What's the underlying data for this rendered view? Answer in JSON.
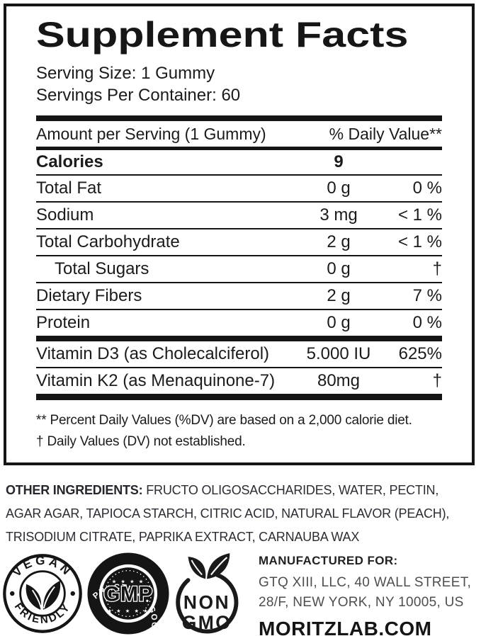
{
  "facts": {
    "title": "Supplement Facts",
    "serving_size": "Serving Size: 1 Gummy",
    "servings_per_container": "Servings Per Container: 60",
    "header": {
      "amount_label": "Amount per Serving (1 Gummy)",
      "dv_label": "% Daily Value**"
    },
    "rows": [
      {
        "name": "Calories",
        "amount": "9",
        "dv": "",
        "mods": [
          "bold",
          "cal"
        ]
      },
      {
        "name": "Total Fat",
        "amount": "0 g",
        "dv": "0 %",
        "mods": []
      },
      {
        "name": "Sodium",
        "amount": "3 mg",
        "dv": "< 1 %",
        "mods": []
      },
      {
        "name": "Total Carbohydrate",
        "amount": "2 g",
        "dv": "< 1 %",
        "mods": []
      },
      {
        "name": "Total Sugars",
        "amount": "0 g",
        "dv": "†",
        "mods": [
          "indent"
        ]
      },
      {
        "name": "Dietary Fibers",
        "amount": "2 g",
        "dv": "7 %",
        "mods": []
      },
      {
        "name": "Protein",
        "amount": "0 g",
        "dv": "0 %",
        "mods": [
          "nobb"
        ]
      },
      {
        "name": "Vitamin D3 (as Cholecalciferol)",
        "amount": "5.000 IU",
        "dv": "625%",
        "mods": [
          "thicktop"
        ]
      },
      {
        "name": "Vitamin K2 (as Menaquinone-7)",
        "amount": "80mg",
        "dv": "†",
        "mods": [
          "thickbottom"
        ]
      }
    ],
    "footnotes": [
      "** Percent Daily Values (%DV) are based on a 2,000 calorie diet.",
      "† Daily Values (DV) not established."
    ]
  },
  "other_ingredients": {
    "heading": "OTHER INGREDIENTS:",
    "line1_rest": " FRUCTO OLIGOSACCHARIDES, WATER, PECTIN,",
    "line2": "AGAR AGAR, TAPIOCA STARCH, CITRIC ACID, NATURAL FLAVOR (PEACH),",
    "line3": "TRISODIUM CITRATE, PAPRIKA EXTRACT, CARNAUBA WAX"
  },
  "badges": {
    "vegan": {
      "top": "VEGAN",
      "bottom": "FRIENDLY"
    },
    "gmp": {
      "ring": "PRACTICE • GOOD MANUFACTURING •",
      "center": "GMP",
      "stars_top": "★ ★ ★ ★",
      "stars_bottom": "★ ★ ★ ★ ★"
    },
    "nongmo": {
      "line1": "NON",
      "line2": "GMO"
    }
  },
  "manufacturer": {
    "heading": "MANUFACTURED FOR:",
    "address_line1": "GTQ XIII, LLC, 40 WALL STREET,",
    "address_line2": "28/F, NEW YORK, NY 10005, US",
    "website": "MORITZLAB.COM"
  },
  "colors": {
    "ink": "#151515",
    "soft_ink": "#2c2c33",
    "address_gray": "#4e4e4e"
  }
}
